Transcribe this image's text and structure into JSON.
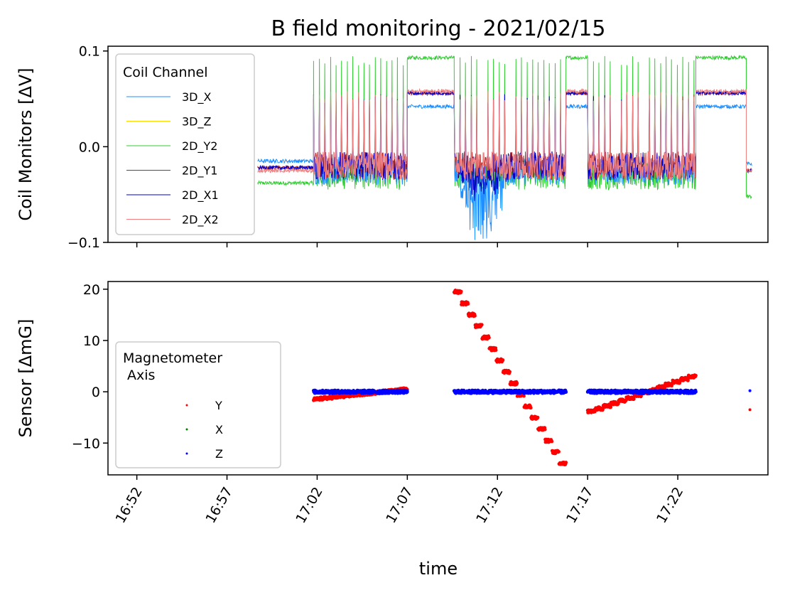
{
  "figure": {
    "title": "B field monitoring - 2021/02/15",
    "xlabel": "time"
  },
  "chart_data": [
    {
      "type": "line",
      "ylabel": "Coil Monitors [ΔV]",
      "x_unit": "minutes",
      "xlim": [
        "16:50.4",
        "17:27.0"
      ],
      "xticks": [
        "16:52",
        "16:57",
        "17:02",
        "17:07",
        "17:12",
        "17:17",
        "17:22"
      ],
      "ylim": [
        -0.1,
        0.105
      ],
      "yticks": [
        {
          "value": 0.1,
          "label": "0.1"
        },
        {
          "value": 0.0,
          "label": "0.0"
        },
        {
          "value": -0.1,
          "label": "−0.1"
        }
      ],
      "legend": {
        "title": "Coil Channel",
        "position": "upper left"
      },
      "series": [
        {
          "name": "3D_X",
          "color": "#1e90ff"
        },
        {
          "name": "3D_Z",
          "color": "#ffd700"
        },
        {
          "name": "2D_Y2",
          "color": "#32cd32"
        },
        {
          "name": "2D_Y1",
          "color": "#b22222"
        },
        {
          "name": "2D_X1",
          "color": "#0000cd"
        },
        {
          "name": "2D_X2",
          "color": "#f08080"
        }
      ],
      "segments": [
        {
          "start": "16:58.7",
          "end": "17:01.8",
          "mode": "baseline",
          "levels": {
            "3D_X": -0.015,
            "2D_Y2": -0.038,
            "2D_Y1": -0.022,
            "2D_X1": -0.022,
            "2D_X2": -0.025
          }
        },
        {
          "start": "17:01.8",
          "end": "17:07.0",
          "mode": "pulsed",
          "pulse_top": 0.095,
          "floor": -0.03
        },
        {
          "start": "17:07.0",
          "end": "17:09.6",
          "mode": "steady",
          "levels": {
            "3D_X": 0.042,
            "2D_Y2": 0.093,
            "2D_Y1": 0.056,
            "2D_X1": 0.056,
            "2D_X2": 0.058
          }
        },
        {
          "start": "17:09.6",
          "end": "17:15.8",
          "mode": "pulsed",
          "pulse_top": 0.095,
          "floor": -0.035,
          "min": -0.092
        },
        {
          "start": "17:15.8",
          "end": "17:17.0",
          "mode": "steady",
          "levels": {
            "3D_X": 0.042,
            "2D_Y2": 0.093,
            "2D_Y1": 0.056,
            "2D_X1": 0.056,
            "2D_X2": 0.058
          }
        },
        {
          "start": "17:17.0",
          "end": "17:23.0",
          "mode": "pulsed",
          "pulse_top": 0.095,
          "floor": -0.03
        },
        {
          "start": "17:23.0",
          "end": "17:25.8",
          "mode": "steady",
          "levels": {
            "3D_X": 0.042,
            "2D_Y2": 0.093,
            "2D_Y1": 0.056,
            "2D_X1": 0.056,
            "2D_X2": 0.058
          }
        },
        {
          "start": "17:25.8",
          "end": "17:26.1",
          "mode": "baseline",
          "levels": {
            "3D_X": -0.018,
            "2D_Y2": -0.052,
            "2D_Y1": -0.025,
            "2D_X1": -0.025,
            "2D_X2": -0.025
          }
        }
      ]
    },
    {
      "type": "scatter",
      "ylabel": "Sensor [ΔmG]",
      "x_unit": "minutes",
      "xlim": [
        "16:50.4",
        "17:27.0"
      ],
      "ylim": [
        -16.2,
        21.5
      ],
      "yticks": [
        {
          "value": 20,
          "label": "20"
        },
        {
          "value": 10,
          "label": "10"
        },
        {
          "value": 0,
          "label": "0"
        },
        {
          "value": -10,
          "label": "−10"
        }
      ],
      "legend": {
        "title": "Magnetometer\n Axis",
        "position": "lower left"
      },
      "series": [
        {
          "name": "Y",
          "color": "#ff0000",
          "segments": [
            {
              "start": "17:01.8",
              "end": "17:07.0",
              "y_start": -1.5,
              "y_end": 0.5
            },
            {
              "start": "17:09.6",
              "end": "17:15.8",
              "y_start": 19.5,
              "y_end": -14.0,
              "steps": 16
            },
            {
              "start": "17:17.0",
              "end": "17:23.0",
              "y_start": -3.8,
              "y_end": 3.0,
              "steps": 14
            }
          ],
          "points": [
            {
              "x": "17:26.0",
              "y": -3.5
            }
          ]
        },
        {
          "name": "X",
          "color": "#008000",
          "segments": []
        },
        {
          "name": "Z",
          "color": "#0000ff",
          "segments": [
            {
              "start": "17:01.8",
              "end": "17:07.0",
              "y_start": 0.0,
              "y_end": 0.0
            },
            {
              "start": "17:09.6",
              "end": "17:15.8",
              "y_start": 0.0,
              "y_end": 0.0
            },
            {
              "start": "17:17.0",
              "end": "17:23.0",
              "y_start": 0.0,
              "y_end": 0.0
            }
          ],
          "points": [
            {
              "x": "17:26.0",
              "y": 0.2
            }
          ]
        }
      ]
    }
  ]
}
